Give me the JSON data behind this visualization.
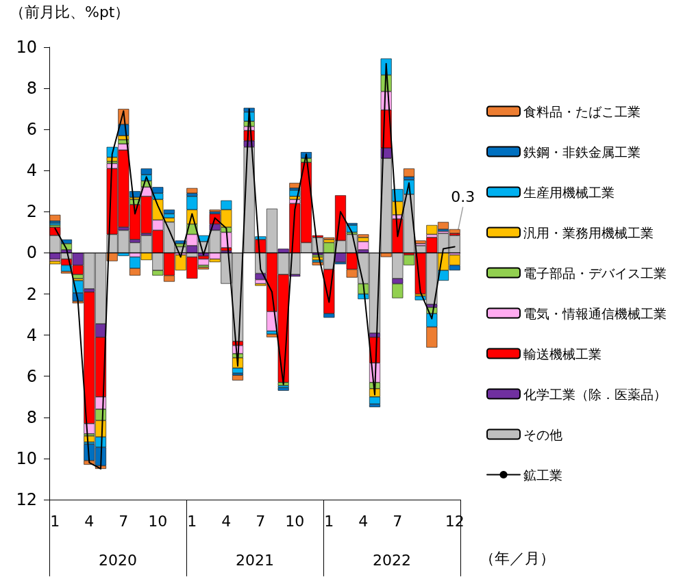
{
  "chart_data": {
    "type": "bar",
    "stacked": true,
    "ylabel": "（前月比、%pt）",
    "xlabel": "（年／月）",
    "categories": [
      "1",
      null,
      null,
      "4",
      null,
      null,
      "7",
      null,
      null,
      "10",
      null,
      null,
      "1",
      null,
      null,
      "4",
      null,
      null,
      "7",
      null,
      null,
      "10",
      null,
      null,
      "1",
      null,
      null,
      "4",
      null,
      null,
      "7",
      null,
      null,
      null,
      null,
      "12"
    ],
    "ylim": [
      -12,
      10
    ],
    "yticks": [
      10,
      8,
      6,
      4,
      2,
      0,
      {
        "value": -2,
        "label": "2"
      },
      {
        "value": -4,
        "label": "4"
      },
      {
        "value": -6,
        "label": "6"
      },
      {
        "value": -8,
        "label": "8"
      },
      {
        "value": -10,
        "label": "10"
      },
      {
        "value": -12,
        "label": "12"
      }
    ],
    "grid": false,
    "legend": "right",
    "marker": "none",
    "line_style": "solid",
    "ref_lines": [
      {
        "axis": "y",
        "value": 0,
        "color": "#000000"
      }
    ],
    "annotations": [
      "2020",
      "2021",
      "2022",
      {
        "text": "0.3",
        "x": "12",
        "y": 0.3
      }
    ],
    "series": [
      {
        "name": "その他",
        "color": "#bfbfbf",
        "values": [
          0.85,
          -0.3,
          null,
          -1.75,
          -3.45,
          0.9,
          1.1,
          0.5,
          0.85,
          -0.85,
          1.5,
          0.3,
          -0.2,
          0.55,
          1.1,
          -1.5,
          -4.3,
          5.15,
          -1.0,
          2.15,
          -1.05,
          -1.05,
          0.5,
          0.75,
          -0.8,
          0.6,
          0.9,
          -1.5,
          -3.9,
          4.6,
          -1.25,
          2.85,
          0.35,
          -2.5,
          0.95,
          0.85
        ]
      },
      {
        "name": "化学工業（除．医薬品）",
        "color": "#7030a0",
        "values": [
          -0.3,
          0.15,
          -0.6,
          -0.15,
          -0.65,
          null,
          0.15,
          0.15,
          0.1,
          null,
          null,
          null,
          0.35,
          -0.15,
          0.3,
          0.1,
          null,
          0.3,
          -0.3,
          null,
          0.2,
          -0.1,
          null,
          -0.1,
          null,
          -0.45,
          null,
          0.15,
          -0.2,
          0.5,
          -0.25,
          null,
          null,
          -0.15,
          null,
          null
        ]
      },
      {
        "name": "輸送機械工業",
        "color": "#ff0000",
        "values": [
          0.4,
          -0.3,
          -0.45,
          -6.4,
          -2.9,
          3.2,
          3.75,
          1.7,
          1.8,
          1.1,
          -1.1,
          null,
          -1.05,
          -0.15,
          0.5,
          0.15,
          -0.2,
          0.5,
          0.65,
          -2.85,
          -5.25,
          2.4,
          3.9,
          0.1,
          -2.15,
          2.2,
          -0.8,
          null,
          -1.25,
          1.85,
          1.65,
          -0.1,
          -2.0,
          0.75,
          null,
          0.1
        ]
      },
      {
        "name": "電気・情報通信機械工業",
        "color": "#ffabf0",
        "values": [
          -0.1,
          null,
          null,
          -0.5,
          -0.6,
          0.25,
          0.3,
          -0.2,
          0.45,
          0.5,
          null,
          -0.1,
          0.55,
          -0.3,
          -0.3,
          0.75,
          -0.4,
          0.2,
          -0.2,
          -0.95,
          null,
          0.2,
          null,
          null,
          null,
          null,
          null,
          0.4,
          -0.95,
          0.9,
          0.2,
          null,
          0.1,
          0.15,
          0.1,
          -0.1
        ]
      },
      {
        "name": "電子部品・デバイス工業",
        "color": "#92d050",
        "values": [
          0.1,
          0.3,
          -0.2,
          -0.1,
          -0.55,
          0.1,
          0.2,
          0.25,
          0.3,
          -0.25,
          null,
          0.15,
          0.5,
          -0.1,
          null,
          0.25,
          -0.2,
          0.25,
          null,
          null,
          -0.15,
          null,
          0.2,
          -0.1,
          0.5,
          null,
          0.1,
          -0.5,
          -0.3,
          0.8,
          -0.7,
          -0.5,
          null,
          -0.3,
          null,
          null
        ]
      },
      {
        "name": "汎用・業務用機械工業",
        "color": "#ffc000",
        "values": [
          -0.15,
          null,
          -0.1,
          -0.3,
          -0.8,
          0.2,
          0.2,
          0.1,
          -0.35,
          1.0,
          0.2,
          -0.75,
          0.7,
          null,
          -0.15,
          0.85,
          -0.5,
          null,
          -0.1,
          null,
          null,
          0.15,
          null,
          -0.15,
          0.15,
          null,
          null,
          0.2,
          -0.4,
          null,
          0.65,
          null,
          -0.1,
          0.45,
          -0.85,
          -0.5
        ]
      },
      {
        "name": "生産用機械工業",
        "color": "#00b0f0",
        "values": [
          0.1,
          -0.3,
          -0.6,
          -0.1,
          -0.5,
          0.5,
          -0.15,
          -0.55,
          0.3,
          0.3,
          0.2,
          null,
          0.65,
          0.3,
          null,
          0.45,
          -0.25,
          0.45,
          0.15,
          -0.15,
          -0.1,
          0.3,
          null,
          -0.1,
          null,
          null,
          0.35,
          -0.25,
          -0.35,
          0.8,
          0.6,
          0.7,
          -0.2,
          -0.65,
          -0.5,
          null
        ]
      },
      {
        "name": "鉄鋼・非鉄金属工業",
        "color": "#0070c0",
        "values": [
          0.1,
          0.2,
          -0.4,
          -0.8,
          -0.9,
          null,
          0.55,
          0.3,
          0.3,
          0.3,
          0.2,
          0.15,
          0.15,
          null,
          0.1,
          null,
          -0.1,
          0.2,
          null,
          null,
          -0.15,
          0.1,
          0.3,
          null,
          -0.2,
          -0.1,
          0.1,
          null,
          -0.15,
          null,
          null,
          0.15,
          null,
          null,
          0.1,
          -0.25
        ]
      },
      {
        "name": "食料品・たばこ工業",
        "color": "#ed7d31",
        "values": [
          0.3,
          -0.1,
          -0.1,
          -0.2,
          -0.15,
          -0.4,
          0.75,
          -0.35,
          null,
          null,
          -0.3,
          null,
          0.25,
          -0.1,
          0.1,
          null,
          -0.25,
          null,
          null,
          -0.15,
          null,
          0.25,
          null,
          -0.15,
          0.1,
          null,
          -0.4,
          0.15,
          null,
          -0.2,
          null,
          0.4,
          0.15,
          -1.0,
          0.35,
          0.2
        ]
      },
      {
        "name": "鉱工業",
        "type": "line",
        "color": "#000000",
        "values": [
          1.2,
          0.2,
          -2.3,
          -10.2,
          -10.5,
          4.8,
          6.9,
          1.9,
          3.7,
          2.3,
          1.1,
          -0.2,
          1.9,
          -0.1,
          1.7,
          1.2,
          -5.5,
          7.0,
          -0.8,
          -1.9,
          -6.4,
          2.1,
          4.8,
          0.1,
          -2.4,
          2.0,
          1.0,
          -1.5,
          -6.9,
          9.2,
          0.8,
          3.4,
          -1.9,
          -3.2,
          0.2,
          0.3
        ]
      }
    ]
  }
}
